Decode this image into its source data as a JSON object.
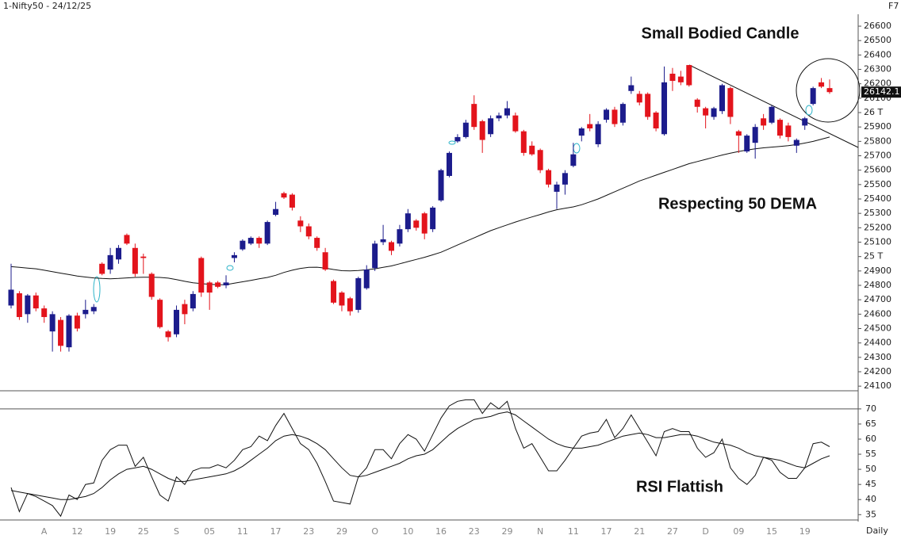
{
  "timeframe": "Daily",
  "chart_data": [
    {
      "type": "candlestick",
      "title": "1-Nifty50 - 24/12/25",
      "corner_label": "F7",
      "annotations": [
        "Small Bodied Candle",
        "Respecting 50 DEMA"
      ],
      "up_color": "#1c1c8c",
      "down_color": "#e3141c",
      "open": [
        24660,
        24745,
        24600,
        24730,
        24640,
        24480,
        24560,
        24370,
        24590,
        24600,
        24620,
        24950,
        24910,
        24980,
        25150,
        25060,
        25000,
        24880,
        24700,
        24480,
        24460,
        24670,
        24640,
        24990,
        24820,
        24820,
        24800,
        24990,
        25050,
        25090,
        25130,
        25090,
        25290,
        25440,
        25430,
        25250,
        25210,
        25130,
        25030,
        24830,
        24750,
        24710,
        24630,
        24780,
        24920,
        25100,
        25100,
        25090,
        25190,
        25250,
        25300,
        25190,
        25390,
        25560,
        25800,
        25830,
        26060,
        25940,
        25850,
        25960,
        25980,
        25980,
        25870,
        25770,
        25740,
        25600,
        25450,
        25500,
        25630,
        25840,
        25920,
        25780,
        25950,
        26020,
        25930,
        26150,
        26130,
        26130,
        26000,
        25850,
        26270,
        26250,
        26330,
        26090,
        26030,
        25970,
        26010,
        26170,
        25870,
        25730,
        25790,
        25960,
        25930,
        25950,
        25910,
        25770,
        25910,
        26060,
        26210,
        26170
      ],
      "high": [
        24950,
        24760,
        24740,
        24750,
        24660,
        24620,
        24580,
        24600,
        24610,
        24700,
        24670,
        24960,
        25060,
        25080,
        25160,
        25090,
        25020,
        24890,
        24710,
        24490,
        24660,
        24700,
        24760,
        25000,
        24830,
        24830,
        24870,
        25030,
        25120,
        25140,
        25140,
        25250,
        25380,
        25450,
        25440,
        25280,
        25230,
        25140,
        25060,
        24840,
        24760,
        24720,
        24860,
        24940,
        25110,
        25220,
        25110,
        25220,
        25330,
        25260,
        25310,
        25350,
        25610,
        25730,
        25850,
        25950,
        26120,
        25950,
        25980,
        26000,
        26080,
        26000,
        25880,
        25800,
        25750,
        25610,
        25520,
        25600,
        25790,
        25900,
        25990,
        25940,
        26030,
        26040,
        26070,
        26250,
        26150,
        26140,
        26010,
        26320,
        26310,
        26290,
        26330,
        26100,
        26040,
        26040,
        26200,
        26180,
        25880,
        25850,
        25920,
        25990,
        26050,
        25960,
        25930,
        25820,
        25970,
        26180,
        26240,
        26230
      ],
      "low": [
        24640,
        24560,
        24540,
        24620,
        24540,
        24340,
        24340,
        24340,
        24480,
        24570,
        24600,
        24870,
        24880,
        24950,
        25080,
        24860,
        24880,
        24700,
        24500,
        24410,
        24440,
        24530,
        24620,
        24720,
        24630,
        24780,
        24780,
        24960,
        25040,
        25080,
        25060,
        25080,
        25280,
        25400,
        25320,
        25170,
        25120,
        25040,
        24900,
        24670,
        24620,
        24590,
        24610,
        24770,
        24900,
        25080,
        25010,
        25070,
        25170,
        25180,
        25120,
        25170,
        25380,
        25550,
        25790,
        25820,
        25880,
        25720,
        25830,
        25940,
        25960,
        25860,
        25700,
        25700,
        25580,
        25480,
        25330,
        25430,
        25620,
        25800,
        25870,
        25760,
        25930,
        25900,
        25910,
        26130,
        26050,
        25950,
        25870,
        25840,
        26150,
        26190,
        26180,
        26000,
        25890,
        25950,
        25990,
        25920,
        25720,
        25720,
        25680,
        25880,
        25920,
        25820,
        25800,
        25720,
        25880,
        26050,
        26170,
        26130
      ],
      "close": [
        24770,
        24580,
        24730,
        24640,
        24580,
        24600,
        24380,
        24590,
        24500,
        24630,
        24650,
        24880,
        25010,
        25060,
        25090,
        24880,
        24990,
        24720,
        24510,
        24440,
        24630,
        24600,
        24740,
        24750,
        24750,
        24790,
        24820,
        25010,
        25110,
        25130,
        25090,
        25240,
        25330,
        25410,
        25340,
        25210,
        25140,
        25060,
        24910,
        24680,
        24660,
        24620,
        24850,
        24910,
        25090,
        25120,
        25040,
        25190,
        25300,
        25200,
        25160,
        25340,
        25600,
        25720,
        25830,
        25930,
        25900,
        25810,
        25960,
        25980,
        26030,
        25870,
        25720,
        25710,
        25600,
        25500,
        25500,
        25580,
        25710,
        25890,
        25890,
        25920,
        26020,
        25920,
        26060,
        26190,
        26070,
        25970,
        25890,
        26210,
        26220,
        26210,
        26190,
        26040,
        25980,
        26030,
        26190,
        25970,
        25840,
        25840,
        25900,
        25910,
        26040,
        25840,
        25830,
        25810,
        25960,
        26170,
        26180,
        26142.1
      ],
      "lines": [
        {
          "color": "#111111",
          "values": [
            24930,
            24925,
            24920,
            24915,
            24905,
            24895,
            24885,
            24875,
            24865,
            24858,
            24852,
            24848,
            24846,
            24848,
            24852,
            24855,
            24856,
            24856,
            24855,
            24850,
            24840,
            24828,
            24818,
            24812,
            24808,
            24804,
            24805,
            24815,
            24825,
            24835,
            24845,
            24855,
            24870,
            24890,
            24905,
            24918,
            24925,
            24926,
            24920,
            24910,
            24902,
            24900,
            24903,
            24908,
            24915,
            24925,
            24935,
            24950,
            24965,
            24980,
            24995,
            25012,
            25030,
            25055,
            25080,
            25105,
            25130,
            25155,
            25180,
            25200,
            25220,
            25240,
            25258,
            25275,
            25292,
            25310,
            25325,
            25335,
            25345,
            25360,
            25380,
            25400,
            25425,
            25450,
            25475,
            25500,
            25525,
            25545,
            25565,
            25585,
            25605,
            25625,
            25645,
            25660,
            25675,
            25690,
            25705,
            25718,
            25730,
            25740,
            25748,
            25755,
            25760,
            25765,
            25770,
            25778,
            25788,
            25800,
            25815,
            25830
          ]
        }
      ],
      "ylim": [
        24080,
        26680
      ],
      "yticks": [
        24100,
        24200,
        24300,
        24400,
        24500,
        24600,
        24700,
        24800,
        24900,
        {
          "value": 25000,
          "label": "25 T"
        },
        25100,
        25200,
        25300,
        25400,
        25500,
        25600,
        25700,
        25800,
        25900,
        {
          "value": 26000,
          "label": "26 T"
        },
        26100,
        26200,
        26300,
        26400,
        26500,
        26600
      ]
    },
    {
      "type": "line",
      "annotations": [
        "RSI Flattish"
      ],
      "categories": [
        null,
        null,
        null,
        null,
        "A",
        null,
        null,
        null,
        "12",
        null,
        null,
        null,
        "19",
        null,
        null,
        null,
        "25",
        null,
        null,
        null,
        "S",
        null,
        null,
        null,
        "05",
        null,
        null,
        null,
        "11",
        null,
        null,
        null,
        "17",
        null,
        null,
        null,
        "23",
        null,
        null,
        null,
        "29",
        null,
        null,
        null,
        "O",
        null,
        null,
        null,
        "10",
        null,
        null,
        null,
        "16",
        null,
        null,
        null,
        "23",
        null,
        null,
        null,
        "29",
        null,
        null,
        null,
        "N",
        null,
        null,
        null,
        "11",
        null,
        null,
        null,
        "17",
        null,
        null,
        null,
        "21",
        null,
        null,
        null,
        "27",
        null,
        null,
        null,
        "D",
        null,
        null,
        null,
        "09",
        null,
        null,
        null,
        "15",
        null,
        null,
        null,
        "19",
        null,
        null,
        null
      ],
      "series": [
        {
          "color": "#111111",
          "values": [
            44,
            36,
            42,
            41,
            39.5,
            38,
            34.5,
            41.5,
            40,
            45,
            45.5,
            53,
            56.5,
            58,
            58,
            51,
            54,
            47.5,
            41.5,
            39.5,
            47.5,
            45,
            49.5,
            50.5,
            50.5,
            51.5,
            50.5,
            53,
            56.5,
            57.5,
            61,
            59.5,
            64.5,
            68.5,
            63.5,
            58.5,
            56.5,
            52,
            46,
            39.5,
            39,
            38.5,
            47.5,
            50.5,
            56.5,
            56.5,
            53.5,
            58.5,
            61.5,
            60,
            56,
            61.5,
            67,
            71,
            72.5,
            73,
            73,
            68.5,
            72,
            70,
            72.5,
            63.5,
            57,
            58.5,
            54,
            49.5,
            49.5,
            53,
            57,
            61,
            62,
            62.5,
            66.5,
            60.5,
            63.5,
            68,
            63.5,
            59,
            54.5,
            62.5,
            63.5,
            62.5,
            62.5,
            57,
            54,
            55.5,
            60,
            50.5,
            47,
            45,
            48,
            54,
            53,
            49,
            47,
            47,
            50.5,
            58.5,
            59,
            57.5
          ]
        },
        {
          "color": "#111111",
          "values": [
            43,
            42.5,
            42,
            41.5,
            41,
            40.5,
            40,
            40,
            40.5,
            41,
            42,
            44,
            46.5,
            48.5,
            50,
            50.5,
            51,
            50,
            48.5,
            47,
            46,
            46,
            46.5,
            47,
            47.5,
            48,
            48.5,
            49.5,
            51,
            53,
            55,
            57,
            59.5,
            61,
            61.5,
            61,
            60,
            58.5,
            56.5,
            53.5,
            50.5,
            48,
            47.5,
            48,
            49,
            50,
            51,
            52,
            53.5,
            54.5,
            55,
            56.5,
            59,
            61.5,
            63.5,
            65,
            66.5,
            67,
            67.5,
            68.5,
            69,
            68,
            66,
            64,
            62,
            60,
            58.5,
            57.5,
            57,
            57,
            57.5,
            58,
            59,
            60,
            61,
            61.5,
            62,
            61.5,
            60.5,
            60.5,
            61,
            61.5,
            61.5,
            61,
            60,
            59,
            58.5,
            58,
            57,
            55.5,
            54.5,
            54,
            53.5,
            53,
            52,
            51,
            50.5,
            52,
            53.5,
            54.5
          ]
        }
      ],
      "hlines": [
        70
      ],
      "ylim": [
        33.5,
        76
      ],
      "yticks": [
        35,
        40,
        45,
        50,
        55,
        60,
        65,
        70
      ]
    }
  ]
}
